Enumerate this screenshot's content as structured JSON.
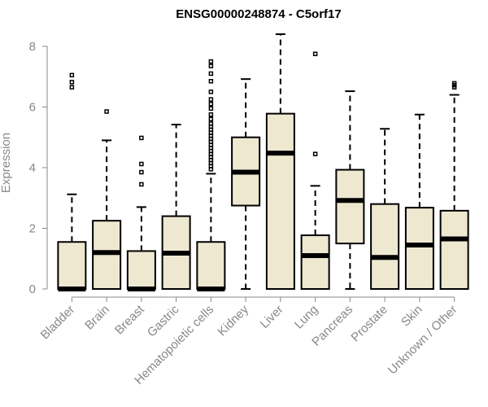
{
  "chart_data": {
    "type": "boxplot",
    "title": "ENSG00000248874 - C5orf17",
    "ylabel": "Expression",
    "xlabel": "",
    "ylim": [
      0,
      8.4
    ],
    "yticks": [
      0,
      2,
      4,
      6,
      8
    ],
    "box_color": "#EEE8D0",
    "categories": [
      "Bladder",
      "Brain",
      "Breast",
      "Gastric",
      "Hematopoietic cells",
      "Kidney",
      "Liver",
      "Lung",
      "Pancreas",
      "Prostate",
      "Skin",
      "Unknown / Other"
    ],
    "boxes": [
      {
        "q1": 0,
        "median": 0,
        "q3": 1.55,
        "whisker_low": 0,
        "whisker_high": 3.12,
        "outliers": [
          6.65,
          6.82,
          7.05
        ]
      },
      {
        "q1": 0,
        "median": 1.2,
        "q3": 2.25,
        "whisker_low": 0,
        "whisker_high": 4.9,
        "outliers": [
          5.85
        ]
      },
      {
        "q1": 0,
        "median": 0,
        "q3": 1.25,
        "whisker_low": 0,
        "whisker_high": 2.7,
        "outliers": [
          3.45,
          3.85,
          4.12,
          4.98
        ]
      },
      {
        "q1": 0,
        "median": 1.18,
        "q3": 2.4,
        "whisker_low": 0,
        "whisker_high": 5.42,
        "outliers": []
      },
      {
        "q1": 0,
        "median": 0,
        "q3": 1.55,
        "whisker_low": 0,
        "whisker_high": 3.8,
        "outliers": [
          3.95,
          4.05,
          4.15,
          4.25,
          4.35,
          4.45,
          4.55,
          4.65,
          4.75,
          4.85,
          4.95,
          5.05,
          5.15,
          5.25,
          5.35,
          5.45,
          5.6,
          5.75,
          5.95,
          6.1,
          6.25,
          6.5,
          6.85,
          7.1,
          7.35,
          7.5
        ]
      },
      {
        "q1": 2.75,
        "median": 3.85,
        "q3": 5.0,
        "whisker_low": 0,
        "whisker_high": 6.92,
        "outliers": []
      },
      {
        "q1": 0,
        "median": 4.48,
        "q3": 5.78,
        "whisker_low": 0,
        "whisker_high": 8.4,
        "outliers": []
      },
      {
        "q1": 0,
        "median": 1.1,
        "q3": 1.77,
        "whisker_low": 0,
        "whisker_high": 3.4,
        "outliers": [
          4.45,
          7.75
        ]
      },
      {
        "q1": 1.5,
        "median": 2.92,
        "q3": 3.93,
        "whisker_low": 0,
        "whisker_high": 6.52,
        "outliers": []
      },
      {
        "q1": 0,
        "median": 1.04,
        "q3": 2.8,
        "whisker_low": 0,
        "whisker_high": 5.28,
        "outliers": []
      },
      {
        "q1": 0,
        "median": 1.45,
        "q3": 2.68,
        "whisker_low": 0,
        "whisker_high": 5.75,
        "outliers": []
      },
      {
        "q1": 0,
        "median": 1.65,
        "q3": 2.58,
        "whisker_low": 0,
        "whisker_high": 6.4,
        "outliers": [
          6.65,
          6.72,
          6.78
        ]
      }
    ]
  }
}
